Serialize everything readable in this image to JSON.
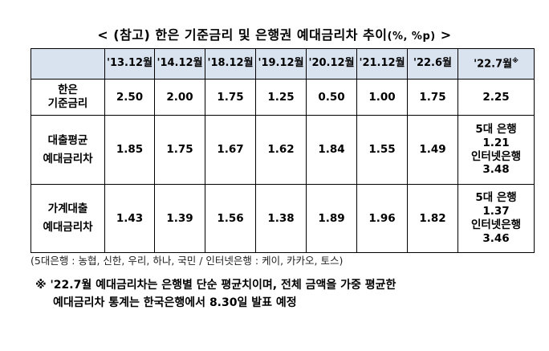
{
  "title": {
    "main": "< (참고) 한은 기준금리 및 은행권 예대금리차 추이",
    "unit": "(%, %p)",
    "end": " >"
  },
  "table": {
    "headers": [
      "",
      "'13.12월",
      "'14.12월",
      "'18.12월",
      "'19.12월",
      "'20.12월",
      "'21.12월",
      "'22.6월",
      "'22.7월"
    ],
    "last_header_mark": "※",
    "rows": [
      {
        "label_lines": [
          "한은",
          "기준금리"
        ],
        "values": [
          "2.50",
          "2.00",
          "1.75",
          "1.25",
          "0.50",
          "1.00",
          "1.75"
        ],
        "last_lines": [
          "2.25"
        ]
      },
      {
        "label_lines": [
          "대출평균",
          "예대금리차"
        ],
        "values": [
          "1.85",
          "1.75",
          "1.67",
          "1.62",
          "1.84",
          "1.55",
          "1.49"
        ],
        "last_lines": [
          "5대 은행",
          "1.21",
          "인터넷은행",
          "3.48"
        ]
      },
      {
        "label_lines": [
          "가계대출",
          "예대금리차"
        ],
        "values": [
          "1.43",
          "1.39",
          "1.56",
          "1.38",
          "1.89",
          "1.96",
          "1.82"
        ],
        "last_lines": [
          "5대 은행",
          "1.37",
          "인터넷은행",
          "3.46"
        ]
      }
    ]
  },
  "note": "(5대은행 : 농협, 신한, 우리, 하나, 국민 / 인터넷은행 : 케이, 카카오, 토스)",
  "footnote": {
    "line1": "※ '22.7월 예대금리차는 은행별 단순 평균치이며, 전체 금액을 가중 평균한",
    "line2": "예대금리차 통계는 한국은행에서 8.30일 발표 예정"
  }
}
